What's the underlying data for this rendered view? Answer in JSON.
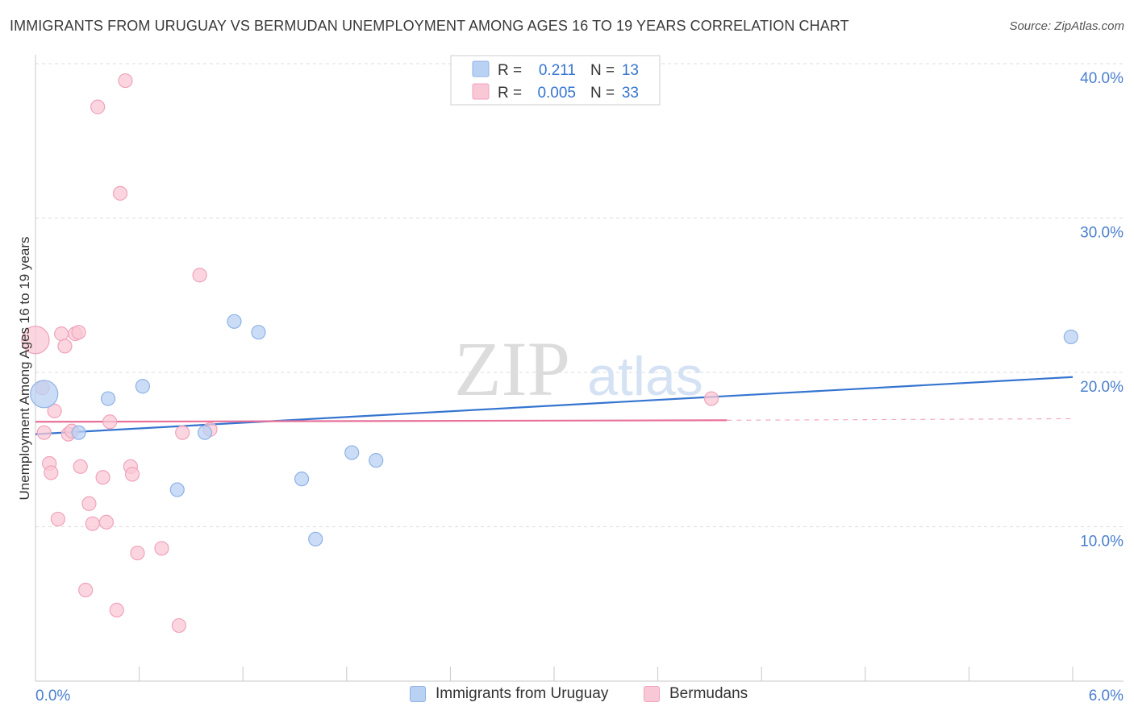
{
  "title": "IMMIGRANTS FROM URUGUAY VS BERMUDAN UNEMPLOYMENT AMONG AGES 16 TO 19 YEARS CORRELATION CHART",
  "source": "Source: ZipAtlas.com",
  "watermark": {
    "zip": "ZIP",
    "atlas": "atlas"
  },
  "colors": {
    "blue_fill": "#b9d1f3",
    "blue_stroke": "#8fb2e6",
    "blue_line": "#3575d0",
    "pink_fill": "#f9c8d6",
    "pink_stroke": "#f0a3bb",
    "pink_line": "#e8719a",
    "axis_text": "#4a7fcf",
    "grid": "#dcdcdc"
  },
  "legend": {
    "rows": [
      {
        "r_label": "R =",
        "r_value": "0.211",
        "n_label": "N =",
        "n_value": "13"
      },
      {
        "r_label": "R =",
        "r_value": "0.005",
        "n_label": "N =",
        "n_value": "33"
      }
    ]
  },
  "chart_data": {
    "type": "scatter",
    "title": "IMMIGRANTS FROM URUGUAY VS BERMUDAN UNEMPLOYMENT AMONG AGES 16 TO 19 YEARS CORRELATION CHART",
    "xlabel": "",
    "ylabel": "Unemployment Among Ages 16 to 19 years",
    "xlim": [
      0,
      6
    ],
    "ylim": [
      0,
      40
    ],
    "x_tick_labels": [
      "0.0%",
      "6.0%"
    ],
    "y_ticks": [
      10,
      20,
      30,
      40
    ],
    "y_tick_labels": [
      "10.0%",
      "20.0%",
      "30.0%",
      "40.0%"
    ],
    "grid": true,
    "series": [
      {
        "name": "Immigrants from Uruguay",
        "r": 0.211,
        "n": 13,
        "points": [
          {
            "x": 0.05,
            "y": 18.6,
            "big": true
          },
          {
            "x": 0.25,
            "y": 16.1
          },
          {
            "x": 0.42,
            "y": 18.3
          },
          {
            "x": 0.62,
            "y": 19.1
          },
          {
            "x": 0.82,
            "y": 12.4
          },
          {
            "x": 0.98,
            "y": 16.1
          },
          {
            "x": 1.15,
            "y": 23.3
          },
          {
            "x": 1.29,
            "y": 22.6
          },
          {
            "x": 1.54,
            "y": 13.1
          },
          {
            "x": 1.62,
            "y": 9.2
          },
          {
            "x": 1.83,
            "y": 14.8
          },
          {
            "x": 1.97,
            "y": 14.3
          },
          {
            "x": 5.99,
            "y": 22.3
          }
        ],
        "trend": {
          "x0": 0,
          "y0": 16.0,
          "x1": 6.0,
          "y1": 19.7
        }
      },
      {
        "name": "Bermudans",
        "r": 0.005,
        "n": 33,
        "points": [
          {
            "x": 0.0,
            "y": 22.1,
            "big": true
          },
          {
            "x": 0.04,
            "y": 19.0
          },
          {
            "x": 0.05,
            "y": 16.1
          },
          {
            "x": 0.08,
            "y": 14.1
          },
          {
            "x": 0.09,
            "y": 13.5
          },
          {
            "x": 0.11,
            "y": 17.5
          },
          {
            "x": 0.13,
            "y": 10.5
          },
          {
            "x": 0.15,
            "y": 22.5
          },
          {
            "x": 0.17,
            "y": 21.7
          },
          {
            "x": 0.19,
            "y": 16.0
          },
          {
            "x": 0.21,
            "y": 16.2
          },
          {
            "x": 0.23,
            "y": 22.5
          },
          {
            "x": 0.25,
            "y": 22.6
          },
          {
            "x": 0.26,
            "y": 13.9
          },
          {
            "x": 0.29,
            "y": 5.9
          },
          {
            "x": 0.31,
            "y": 11.5
          },
          {
            "x": 0.33,
            "y": 10.2
          },
          {
            "x": 0.36,
            "y": 37.2
          },
          {
            "x": 0.39,
            "y": 13.2
          },
          {
            "x": 0.41,
            "y": 10.3
          },
          {
            "x": 0.43,
            "y": 16.8
          },
          {
            "x": 0.47,
            "y": 4.6
          },
          {
            "x": 0.49,
            "y": 31.6
          },
          {
            "x": 0.52,
            "y": 38.9
          },
          {
            "x": 0.55,
            "y": 13.9
          },
          {
            "x": 0.56,
            "y": 13.4
          },
          {
            "x": 0.59,
            "y": 8.3
          },
          {
            "x": 0.73,
            "y": 8.6
          },
          {
            "x": 0.83,
            "y": 3.6
          },
          {
            "x": 0.85,
            "y": 16.1
          },
          {
            "x": 0.95,
            "y": 26.3
          },
          {
            "x": 1.01,
            "y": 16.3
          },
          {
            "x": 3.91,
            "y": 18.3
          }
        ],
        "trend": {
          "x0": 0,
          "y0": 16.8,
          "x1": 4.0,
          "y1": 16.9,
          "dashed_to_x": 6.0,
          "dashed_to_y": 17.0
        }
      }
    ]
  }
}
